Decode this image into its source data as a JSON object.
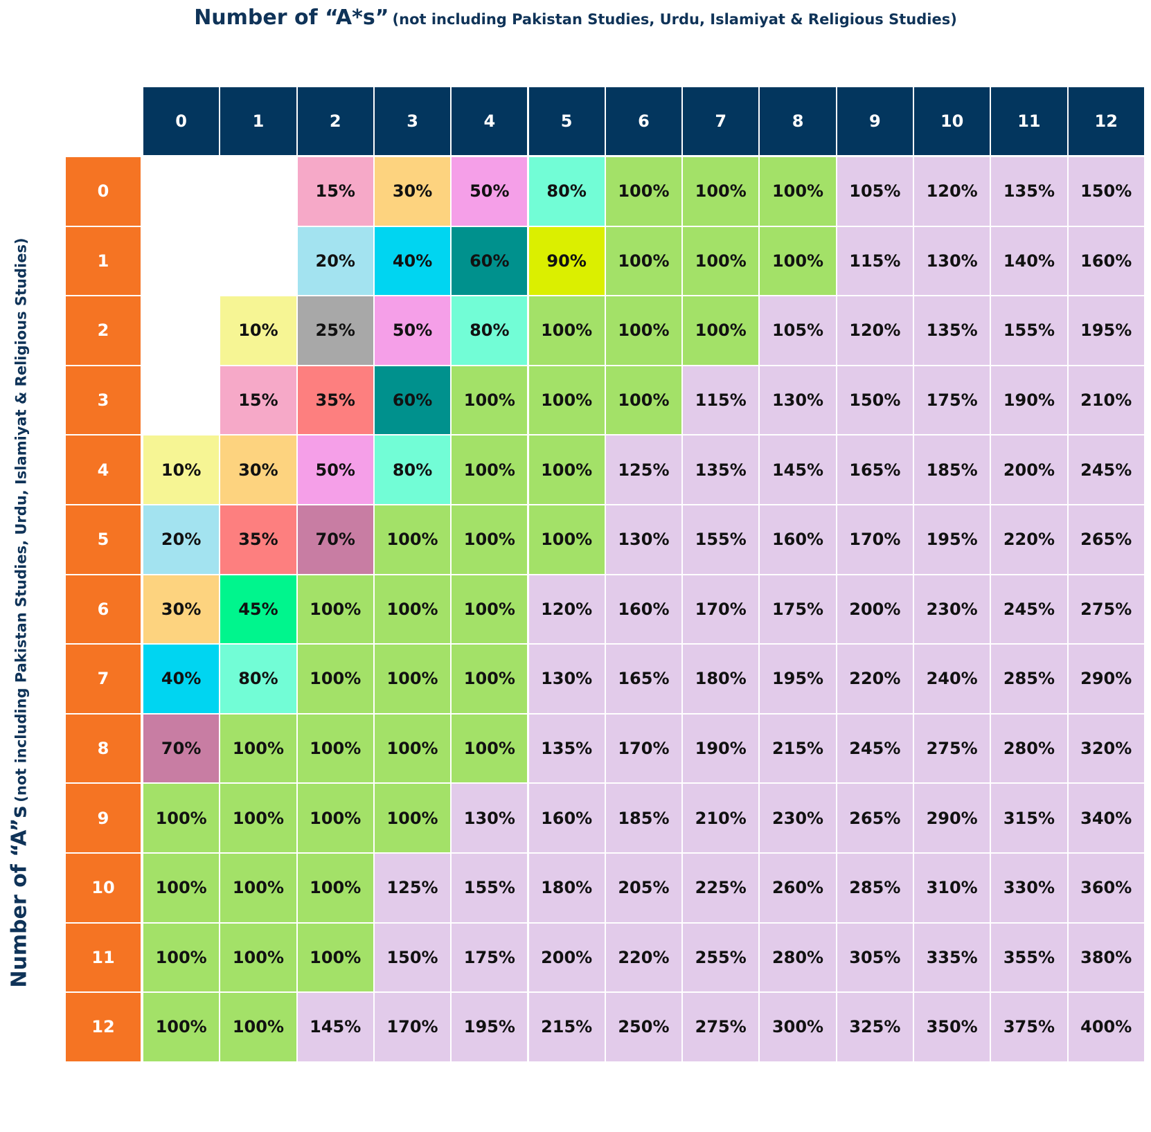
{
  "titles": {
    "top_main": "Number of “A*s”",
    "top_sub": "(not including Pakistan Studies, Urdu, Islamiyat & Religious Studies)",
    "left_main": "Number of “A”s",
    "left_sub": "(not including Pakistan Studies, Urdu, Islamiyat & Religious Studies)"
  },
  "colors": {
    "header": "#03365e",
    "row_header": "#f57423",
    "title_text": "#0f3358",
    "full_100": "#a3e168",
    "above_100": "#e2cbea",
    "empty": "#ffffff"
  },
  "chart_data": {
    "type": "table",
    "title": "Number of “A*s” (not including Pakistan Studies, Urdu, Islamiyat & Religious Studies)",
    "xlabel": "Number of “A*s” (not including Pakistan Studies, Urdu, Islamiyat & Religious Studies)",
    "ylabel": "Number of “A”s (not including Pakistan Studies, Urdu, Islamiyat & Religious Studies)",
    "columns": [
      "0",
      "1",
      "2",
      "3",
      "4",
      "5",
      "6",
      "7",
      "8",
      "9",
      "10",
      "11",
      "12"
    ],
    "rows": [
      "0",
      "1",
      "2",
      "3",
      "4",
      "5",
      "6",
      "7",
      "8",
      "9",
      "10",
      "11",
      "12"
    ],
    "values": [
      [
        "",
        "",
        "15%",
        "30%",
        "50%",
        "80%",
        "100%",
        "100%",
        "100%",
        "105%",
        "120%",
        "135%",
        "150%"
      ],
      [
        "",
        "",
        "20%",
        "40%",
        "60%",
        "90%",
        "100%",
        "100%",
        "100%",
        "115%",
        "130%",
        "140%",
        "160%"
      ],
      [
        "",
        "10%",
        "25%",
        "50%",
        "80%",
        "100%",
        "100%",
        "100%",
        "105%",
        "120%",
        "135%",
        "155%",
        "195%"
      ],
      [
        "",
        "15%",
        "35%",
        "60%",
        "100%",
        "100%",
        "100%",
        "115%",
        "130%",
        "150%",
        "175%",
        "190%",
        "210%"
      ],
      [
        "10%",
        "30%",
        "50%",
        "80%",
        "100%",
        "100%",
        "125%",
        "135%",
        "145%",
        "165%",
        "185%",
        "200%",
        "245%"
      ],
      [
        "20%",
        "35%",
        "70%",
        "100%",
        "100%",
        "100%",
        "130%",
        "155%",
        "160%",
        "170%",
        "195%",
        "220%",
        "265%"
      ],
      [
        "30%",
        "45%",
        "100%",
        "100%",
        "100%",
        "120%",
        "160%",
        "170%",
        "175%",
        "200%",
        "230%",
        "245%",
        "275%"
      ],
      [
        "40%",
        "80%",
        "100%",
        "100%",
        "100%",
        "130%",
        "165%",
        "180%",
        "195%",
        "220%",
        "240%",
        "285%",
        "290%"
      ],
      [
        "70%",
        "100%",
        "100%",
        "100%",
        "100%",
        "135%",
        "170%",
        "190%",
        "215%",
        "245%",
        "275%",
        "280%",
        "320%"
      ],
      [
        "100%",
        "100%",
        "100%",
        "100%",
        "130%",
        "160%",
        "185%",
        "210%",
        "230%",
        "265%",
        "290%",
        "315%",
        "340%"
      ],
      [
        "100%",
        "100%",
        "100%",
        "125%",
        "155%",
        "180%",
        "205%",
        "225%",
        "260%",
        "285%",
        "310%",
        "330%",
        "360%"
      ],
      [
        "100%",
        "100%",
        "100%",
        "150%",
        "175%",
        "200%",
        "220%",
        "255%",
        "280%",
        "305%",
        "335%",
        "355%",
        "380%"
      ],
      [
        "100%",
        "100%",
        "145%",
        "170%",
        "195%",
        "215%",
        "250%",
        "275%",
        "300%",
        "325%",
        "350%",
        "375%",
        "400%"
      ]
    ],
    "value_colors": {
      "10%": "#f6f594",
      "15%": "#f6a9c8",
      "20%": "#a3e3f0",
      "25%": "#a8a8a8",
      "30%": "#fdd37f",
      "35%": "#fd7f7f",
      "40%": "#00d5f1",
      "45%": "#00f58d",
      "50%": "#f59fe8",
      "60%": "#00918d",
      "70%": "#c87da3",
      "80%": "#72fdd6",
      "90%": "#dbef00"
    }
  }
}
